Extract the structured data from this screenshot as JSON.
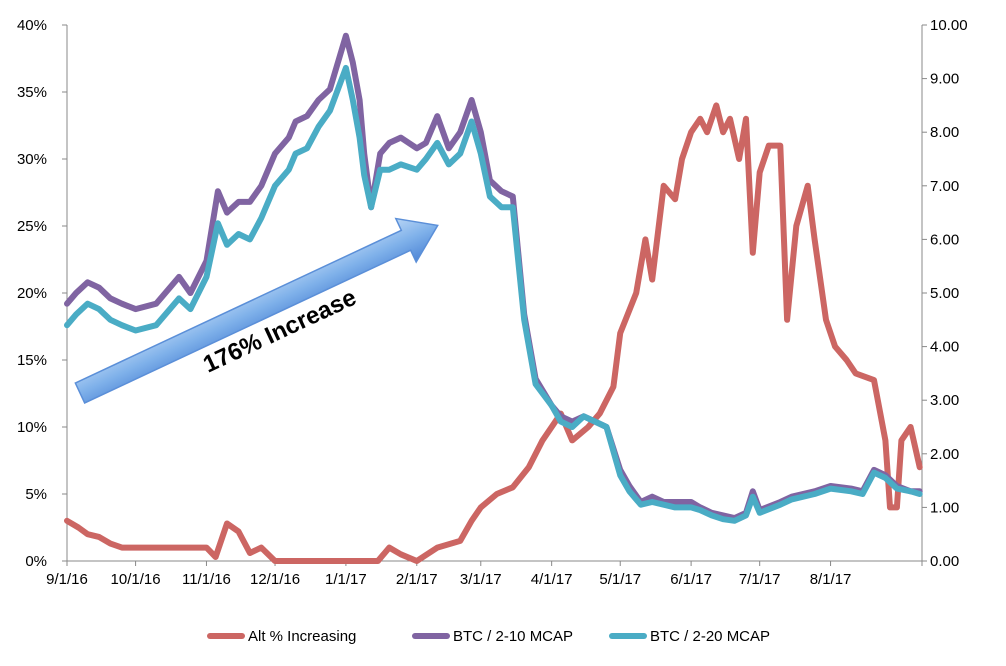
{
  "chart_data": {
    "type": "line",
    "x_ticks": [
      "9/1/16",
      "10/1/16",
      "11/1/16",
      "12/1/16",
      "1/1/17",
      "2/1/17",
      "3/1/17",
      "4/1/17",
      "5/1/17",
      "6/1/17",
      "7/1/17",
      "8/1/17"
    ],
    "y_left": {
      "ticks": [
        "0%",
        "5%",
        "10%",
        "15%",
        "20%",
        "25%",
        "30%",
        "35%",
        "40%"
      ],
      "min": 0,
      "max": 40
    },
    "y_right": {
      "ticks": [
        "0.00",
        "1.00",
        "2.00",
        "3.00",
        "4.00",
        "5.00",
        "6.00",
        "7.00",
        "8.00",
        "9.00",
        "10.00"
      ],
      "min": 0,
      "max": 10
    },
    "annotation": "176% Increase",
    "grid": false,
    "legend_position": "bottom",
    "series": [
      {
        "name": "Alt % Increasing",
        "axis": "left",
        "color": "#cc6663",
        "points": [
          [
            "9/1/16",
            3
          ],
          [
            "9/6/16",
            2.5
          ],
          [
            "9/10/16",
            2
          ],
          [
            "9/15/16",
            1.8
          ],
          [
            "9/20/16",
            1.3
          ],
          [
            "9/25/16",
            1
          ],
          [
            "10/1/16",
            1
          ],
          [
            "10/15/16",
            1
          ],
          [
            "11/1/16",
            1
          ],
          [
            "11/5/16",
            0.3
          ],
          [
            "11/10/16",
            2.8
          ],
          [
            "11/15/16",
            2.2
          ],
          [
            "11/20/16",
            0.6
          ],
          [
            "11/25/16",
            1
          ],
          [
            "12/1/16",
            0
          ],
          [
            "12/15/16",
            0
          ],
          [
            "1/1/17",
            0
          ],
          [
            "1/15/17",
            0
          ],
          [
            "1/20/17",
            1
          ],
          [
            "1/25/17",
            0.5
          ],
          [
            "2/1/17",
            0
          ],
          [
            "2/10/17",
            1
          ],
          [
            "2/20/17",
            1.5
          ],
          [
            "2/25/17",
            3
          ],
          [
            "3/1/17",
            4
          ],
          [
            "3/8/17",
            5
          ],
          [
            "3/15/17",
            5.5
          ],
          [
            "3/22/17",
            7
          ],
          [
            "3/28/17",
            9
          ],
          [
            "4/5/17",
            11
          ],
          [
            "4/10/17",
            9
          ],
          [
            "4/17/17",
            10
          ],
          [
            "4/22/17",
            11
          ],
          [
            "4/28/17",
            13
          ],
          [
            "5/1/17",
            17
          ],
          [
            "5/8/17",
            20
          ],
          [
            "5/12/17",
            24
          ],
          [
            "5/15/17",
            21
          ],
          [
            "5/20/17",
            28
          ],
          [
            "5/25/17",
            27
          ],
          [
            "5/28/17",
            30
          ],
          [
            "6/1/17",
            32
          ],
          [
            "6/5/17",
            33
          ],
          [
            "6/8/17",
            32
          ],
          [
            "6/12/17",
            34
          ],
          [
            "6/15/17",
            32
          ],
          [
            "6/18/17",
            33
          ],
          [
            "6/22/17",
            30
          ],
          [
            "6/25/17",
            33
          ],
          [
            "6/28/17",
            23
          ],
          [
            "7/1/17",
            29
          ],
          [
            "7/5/17",
            31
          ],
          [
            "7/10/17",
            31
          ],
          [
            "7/13/17",
            18
          ],
          [
            "7/17/17",
            25
          ],
          [
            "7/22/17",
            28
          ],
          [
            "7/25/17",
            24
          ],
          [
            "7/30/17",
            18
          ],
          [
            "8/3/17",
            16
          ],
          [
            "8/8/17",
            15
          ],
          [
            "8/12/17",
            14
          ],
          [
            "8/20/17",
            13.5
          ],
          [
            "8/25/17",
            9
          ],
          [
            "8/27/17",
            4
          ],
          [
            "8/30/17",
            4
          ],
          [
            "9/1/17",
            9
          ],
          [
            "9/5/17",
            10
          ],
          [
            "9/9/17",
            7
          ]
        ]
      },
      {
        "name": "BTC / 2-10 MCAP",
        "axis": "right",
        "color": "#8064a2",
        "points": [
          [
            "9/1/16",
            4.8
          ],
          [
            "9/5/16",
            5.0
          ],
          [
            "9/10/16",
            5.2
          ],
          [
            "9/15/16",
            5.1
          ],
          [
            "9/20/16",
            4.9
          ],
          [
            "9/25/16",
            4.8
          ],
          [
            "10/1/16",
            4.7
          ],
          [
            "10/10/16",
            4.8
          ],
          [
            "10/20/16",
            5.3
          ],
          [
            "10/25/16",
            5.0
          ],
          [
            "11/1/16",
            5.6
          ],
          [
            "11/6/16",
            6.9
          ],
          [
            "11/10/16",
            6.5
          ],
          [
            "11/15/16",
            6.7
          ],
          [
            "11/20/16",
            6.7
          ],
          [
            "11/25/16",
            7.0
          ],
          [
            "12/1/16",
            7.6
          ],
          [
            "12/7/16",
            7.9
          ],
          [
            "12/10/16",
            8.2
          ],
          [
            "12/15/16",
            8.3
          ],
          [
            "12/20/16",
            8.6
          ],
          [
            "12/25/16",
            8.8
          ],
          [
            "1/1/17",
            9.8
          ],
          [
            "1/4/17",
            9.3
          ],
          [
            "1/7/17",
            8.6
          ],
          [
            "1/9/17",
            7.6
          ],
          [
            "1/12/17",
            6.6
          ],
          [
            "1/16/17",
            7.6
          ],
          [
            "1/20/17",
            7.8
          ],
          [
            "1/25/17",
            7.9
          ],
          [
            "2/1/17",
            7.7
          ],
          [
            "2/5/17",
            7.8
          ],
          [
            "2/10/17",
            8.3
          ],
          [
            "2/15/17",
            7.7
          ],
          [
            "2/20/17",
            8.0
          ],
          [
            "2/25/17",
            8.6
          ],
          [
            "3/1/17",
            8.0
          ],
          [
            "3/5/17",
            7.1
          ],
          [
            "3/10/17",
            6.9
          ],
          [
            "3/15/17",
            6.8
          ],
          [
            "3/20/17",
            4.6
          ],
          [
            "3/25/17",
            3.4
          ],
          [
            "4/1/17",
            2.9
          ],
          [
            "4/5/17",
            2.7
          ],
          [
            "4/10/17",
            2.6
          ],
          [
            "4/15/17",
            2.7
          ],
          [
            "4/20/17",
            2.6
          ],
          [
            "4/25/17",
            2.5
          ],
          [
            "5/1/17",
            1.7
          ],
          [
            "5/5/17",
            1.4
          ],
          [
            "5/10/17",
            1.1
          ],
          [
            "5/15/17",
            1.2
          ],
          [
            "5/20/17",
            1.1
          ],
          [
            "5/25/17",
            1.1
          ],
          [
            "6/1/17",
            1.1
          ],
          [
            "6/5/17",
            1.0
          ],
          [
            "6/10/17",
            0.9
          ],
          [
            "6/15/17",
            0.85
          ],
          [
            "6/20/17",
            0.8
          ],
          [
            "6/25/17",
            0.9
          ],
          [
            "6/28/17",
            1.3
          ],
          [
            "7/1/17",
            0.95
          ],
          [
            "7/10/17",
            1.1
          ],
          [
            "7/15/17",
            1.2
          ],
          [
            "7/25/17",
            1.3
          ],
          [
            "8/1/17",
            1.4
          ],
          [
            "8/10/17",
            1.35
          ],
          [
            "8/15/17",
            1.3
          ],
          [
            "8/20/17",
            1.7
          ],
          [
            "8/25/17",
            1.6
          ],
          [
            "8/30/17",
            1.4
          ],
          [
            "9/5/17",
            1.3
          ],
          [
            "9/9/17",
            1.3
          ]
        ]
      },
      {
        "name": "BTC / 2-20 MCAP",
        "axis": "right",
        "color": "#4aacc5",
        "points": [
          [
            "9/1/16",
            4.4
          ],
          [
            "9/5/16",
            4.6
          ],
          [
            "9/10/16",
            4.8
          ],
          [
            "9/15/16",
            4.7
          ],
          [
            "9/20/16",
            4.5
          ],
          [
            "9/25/16",
            4.4
          ],
          [
            "10/1/16",
            4.3
          ],
          [
            "10/10/16",
            4.4
          ],
          [
            "10/20/16",
            4.9
          ],
          [
            "10/25/16",
            4.7
          ],
          [
            "11/1/16",
            5.3
          ],
          [
            "11/6/16",
            6.3
          ],
          [
            "11/10/16",
            5.9
          ],
          [
            "11/15/16",
            6.1
          ],
          [
            "11/20/16",
            6.0
          ],
          [
            "11/25/16",
            6.4
          ],
          [
            "12/1/16",
            7.0
          ],
          [
            "12/7/16",
            7.3
          ],
          [
            "12/10/16",
            7.6
          ],
          [
            "12/15/16",
            7.7
          ],
          [
            "12/20/16",
            8.1
          ],
          [
            "12/25/16",
            8.4
          ],
          [
            "1/1/17",
            9.2
          ],
          [
            "1/4/17",
            8.6
          ],
          [
            "1/7/17",
            7.9
          ],
          [
            "1/9/17",
            7.2
          ],
          [
            "1/12/17",
            6.6
          ],
          [
            "1/16/17",
            7.3
          ],
          [
            "1/20/17",
            7.3
          ],
          [
            "1/25/17",
            7.4
          ],
          [
            "2/1/17",
            7.3
          ],
          [
            "2/5/17",
            7.5
          ],
          [
            "2/10/17",
            7.8
          ],
          [
            "2/15/17",
            7.4
          ],
          [
            "2/20/17",
            7.6
          ],
          [
            "2/25/17",
            8.2
          ],
          [
            "3/1/17",
            7.6
          ],
          [
            "3/5/17",
            6.8
          ],
          [
            "3/10/17",
            6.6
          ],
          [
            "3/15/17",
            6.6
          ],
          [
            "3/20/17",
            4.5
          ],
          [
            "3/25/17",
            3.3
          ],
          [
            "4/1/17",
            2.9
          ],
          [
            "4/5/17",
            2.6
          ],
          [
            "4/10/17",
            2.5
          ],
          [
            "4/15/17",
            2.7
          ],
          [
            "4/20/17",
            2.6
          ],
          [
            "4/25/17",
            2.5
          ],
          [
            "5/1/17",
            1.6
          ],
          [
            "5/5/17",
            1.3
          ],
          [
            "5/10/17",
            1.05
          ],
          [
            "5/15/17",
            1.1
          ],
          [
            "5/20/17",
            1.05
          ],
          [
            "5/25/17",
            1.0
          ],
          [
            "6/1/17",
            1.0
          ],
          [
            "6/5/17",
            0.95
          ],
          [
            "6/10/17",
            0.85
          ],
          [
            "6/15/17",
            0.78
          ],
          [
            "6/20/17",
            0.75
          ],
          [
            "6/25/17",
            0.85
          ],
          [
            "6/28/17",
            1.2
          ],
          [
            "7/1/17",
            0.9
          ],
          [
            "7/10/17",
            1.05
          ],
          [
            "7/15/17",
            1.15
          ],
          [
            "7/25/17",
            1.25
          ],
          [
            "8/1/17",
            1.35
          ],
          [
            "8/10/17",
            1.3
          ],
          [
            "8/15/17",
            1.25
          ],
          [
            "8/20/17",
            1.65
          ],
          [
            "8/25/17",
            1.55
          ],
          [
            "8/30/17",
            1.35
          ],
          [
            "9/5/17",
            1.3
          ],
          [
            "9/9/17",
            1.25
          ]
        ]
      }
    ]
  }
}
